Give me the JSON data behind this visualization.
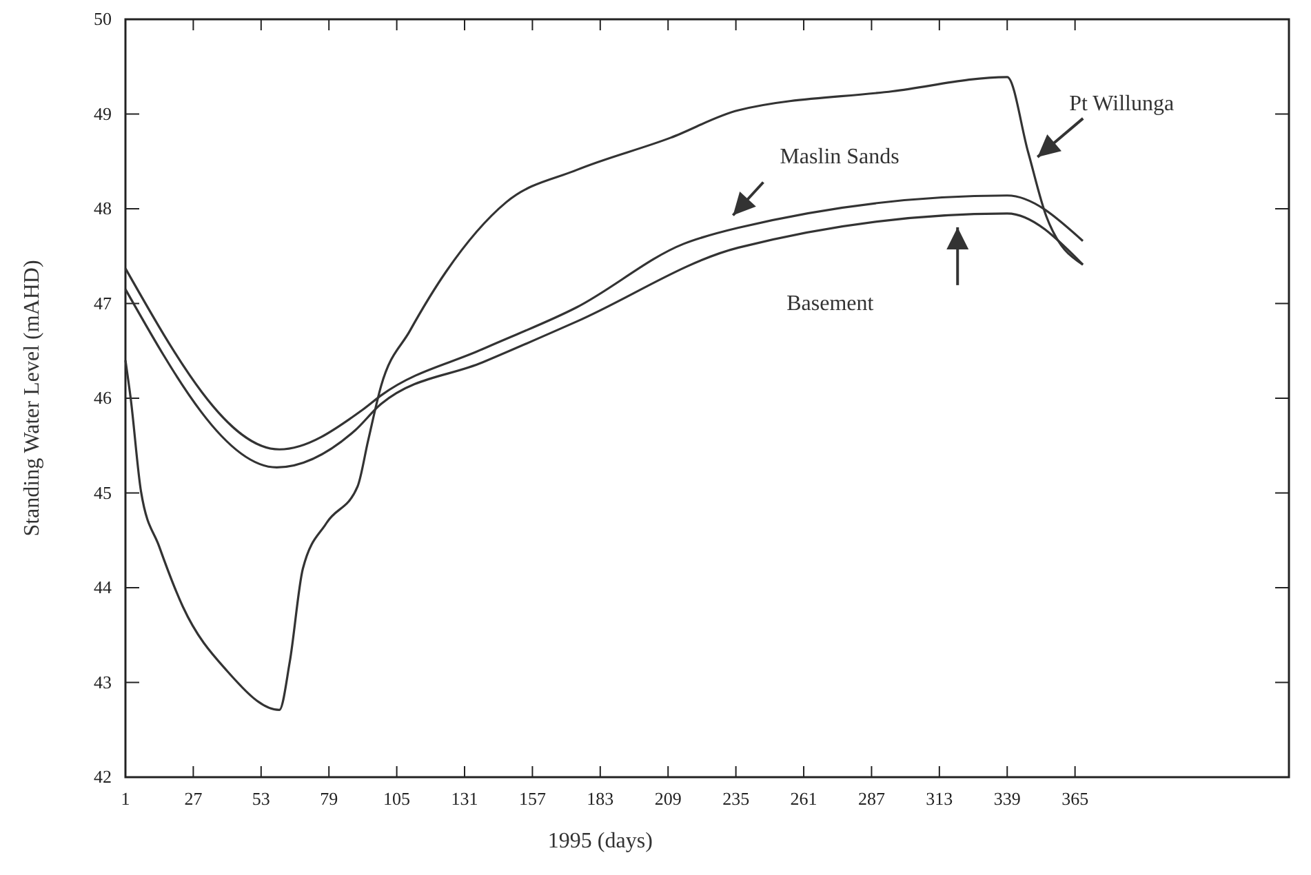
{
  "chart_data": {
    "type": "line",
    "xlabel": "1995 (days)",
    "ylabel": "Standing Water Level (mAHD)",
    "xlim": [
      1,
      447
    ],
    "ylim": [
      42,
      50
    ],
    "xticks": [
      1,
      27,
      53,
      79,
      105,
      131,
      157,
      183,
      209,
      235,
      261,
      287,
      313,
      339,
      365
    ],
    "yticks": [
      42,
      43,
      44,
      45,
      46,
      47,
      48,
      49,
      50
    ],
    "grid": false,
    "marker": "none",
    "line_style": "solid",
    "series": [
      {
        "name": "Pt Willunga",
        "color": "#333333",
        "x": [
          1,
          3,
          7,
          14,
          23,
          40,
          60,
          64,
          69,
          78,
          90,
          94,
          99,
          110,
          124,
          147,
          174,
          210,
          236,
          295,
          339,
          347,
          354,
          368
        ],
        "values": [
          46.4,
          46.0,
          45.01,
          44.43,
          43.8,
          43.12,
          42.71,
          43.22,
          44.2,
          44.68,
          45.07,
          45.55,
          46.13,
          46.71,
          47.34,
          48.07,
          48.41,
          48.75,
          49.04,
          49.24,
          49.39,
          48.6,
          47.92,
          47.41
        ]
      },
      {
        "name": "Maslin Sands",
        "color": "#333333",
        "x": [
          1,
          60,
          92,
          99,
          138,
          174,
          215,
          236,
          339,
          368
        ],
        "values": [
          47.37,
          45.46,
          45.88,
          46.03,
          46.52,
          46.96,
          47.63,
          47.8,
          48.14,
          47.66
        ]
      },
      {
        "name": "Basement",
        "color": "#333333",
        "x": [
          1,
          59,
          89,
          99,
          138,
          174,
          236,
          339,
          368
        ],
        "values": [
          47.15,
          45.27,
          45.66,
          45.94,
          46.38,
          46.81,
          47.59,
          47.95,
          47.41
        ]
      }
    ]
  }
}
